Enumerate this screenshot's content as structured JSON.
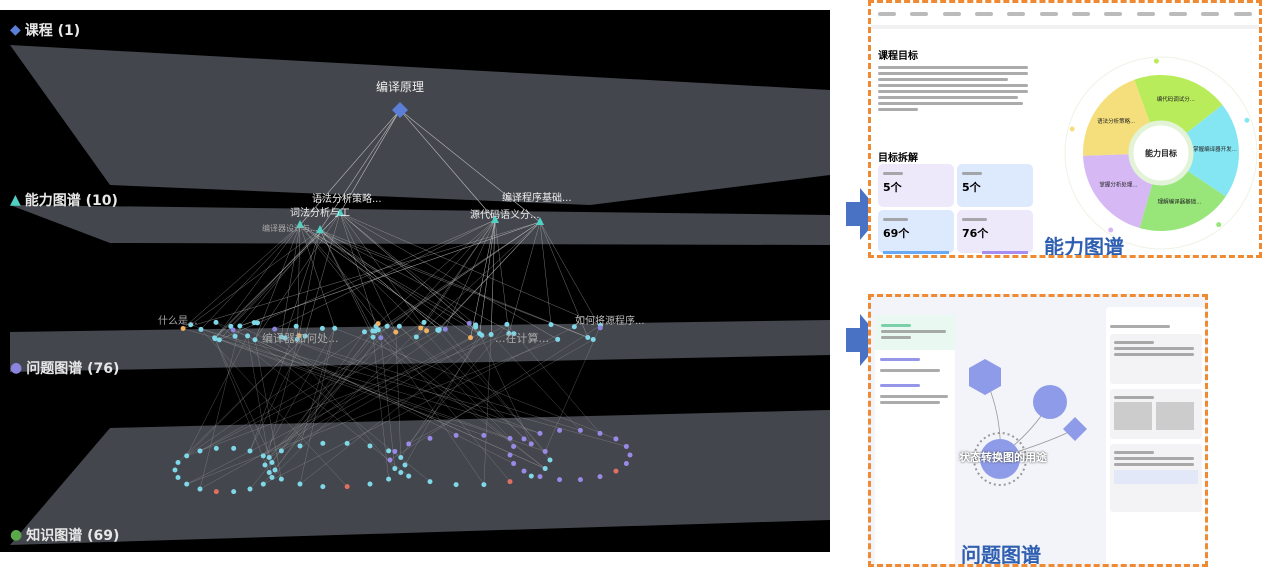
{
  "graph": {
    "layers": [
      {
        "label": "课程 (1)",
        "icon": "diamond-icon",
        "color": "#5b7fd6"
      },
      {
        "label": "能力图谱 (10)",
        "icon": "triangle-icon",
        "color": "#4fd1c5"
      },
      {
        "label": "问题图谱 (76)",
        "icon": "sphere-icon",
        "color": "#8c85e0"
      },
      {
        "label": "知识图谱 (69)",
        "icon": "sphere-icon",
        "color": "#5aa84a"
      }
    ],
    "course_node": "编译原理",
    "ability_nodes": [
      "语法分析策略...",
      "词法分析与工",
      "编译器设计与...",
      "源代码语义分...",
      "编译程序基础..."
    ],
    "problem_labels": [
      "什么是...",
      "编译器如何处...",
      "...在计算...",
      "如何将源程序..."
    ]
  },
  "ability_panel": {
    "section_title": "课程目标",
    "breakdown_title": "目标拆解",
    "cards": [
      {
        "value": "5个",
        "bg": "#ede9fb"
      },
      {
        "value": "5个",
        "bg": "#dde9fc"
      },
      {
        "value": "69个",
        "bg": "#dde9fc",
        "bar_color": "#6aa8f2"
      },
      {
        "value": "76个",
        "bg": "#ede9fb",
        "bar_color": "#a58ef0"
      }
    ],
    "pie_center": "能力目标",
    "pie_slices": [
      {
        "label": "编代码调试分...",
        "color": "#b9ec5a"
      },
      {
        "label": "掌握编译器开发...",
        "color": "#84e6f3"
      },
      {
        "label": "理解编译器基础...",
        "color": "#98e67a"
      },
      {
        "label": "掌握分析处理...",
        "color": "#d6b8f5"
      },
      {
        "label": "语法分析策略...",
        "color": "#f5df7c"
      }
    ],
    "caption": "能力图谱"
  },
  "problem_panel": {
    "main_node": "状态转换图的用途",
    "caption": "问题图谱",
    "accent": "#8e9be8"
  }
}
